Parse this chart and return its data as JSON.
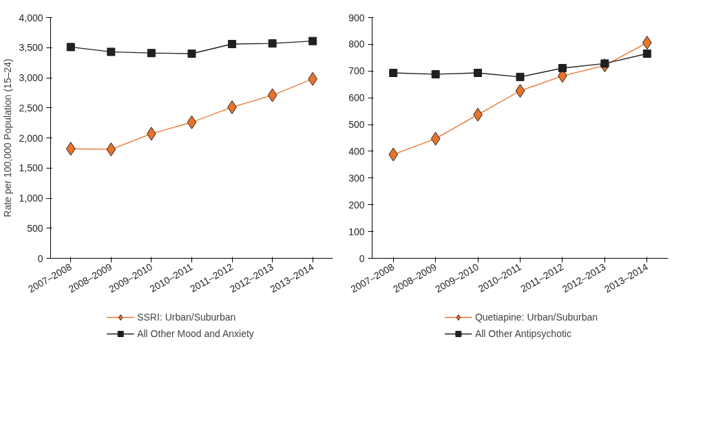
{
  "chart_data": [
    {
      "type": "line",
      "ylabel": "Rate per 100,000 Population (15–24)",
      "categories": [
        "2007–2008",
        "2008–2009",
        "2009–2010",
        "2010–2011",
        "2011–2012",
        "2012–2013",
        "2013–2014"
      ],
      "ylim": [
        0,
        4000
      ],
      "yticks": [
        {
          "value": 0,
          "label": "0"
        },
        {
          "value": 500,
          "label": "500"
        },
        {
          "value": 1000,
          "label": "1,000"
        },
        {
          "value": 1500,
          "label": "1,500"
        },
        {
          "value": 2000,
          "label": "2,000"
        },
        {
          "value": 2500,
          "label": "2,500"
        },
        {
          "value": 3000,
          "label": "3,000"
        },
        {
          "value": 3500,
          "label": "3,500"
        },
        {
          "value": 4000,
          "label": "4,000"
        }
      ],
      "grid": false,
      "legend": "bottom",
      "series": [
        {
          "name": "SSRI: Urban/Suburban",
          "color": "#e8732a",
          "marker": "diamond",
          "values": [
            1820,
            1810,
            2070,
            2260,
            2510,
            2710,
            2980
          ]
        },
        {
          "name": "All Other Mood and Anxiety",
          "color": "#231f20",
          "marker": "square",
          "values": [
            3510,
            3430,
            3410,
            3400,
            3560,
            3570,
            3610
          ]
        }
      ]
    },
    {
      "type": "line",
      "categories": [
        "2007–2008",
        "2008–2009",
        "2009–2010",
        "2010–2011",
        "2011–2012",
        "2012–2013",
        "2013–2014"
      ],
      "ylim": [
        0,
        900
      ],
      "yticks": [
        0,
        100,
        200,
        300,
        400,
        500,
        600,
        700,
        800,
        900
      ],
      "grid": false,
      "legend": "bottom",
      "series": [
        {
          "name": "Quetiapine: Urban/Suburban",
          "color": "#e8732a",
          "marker": "diamond",
          "values": [
            388,
            447,
            537,
            626,
            682,
            721,
            806
          ]
        },
        {
          "name": "All Other Antipsychotic",
          "color": "#231f20",
          "marker": "square",
          "values": [
            693,
            688,
            693,
            678,
            711,
            728,
            765
          ]
        }
      ]
    }
  ]
}
